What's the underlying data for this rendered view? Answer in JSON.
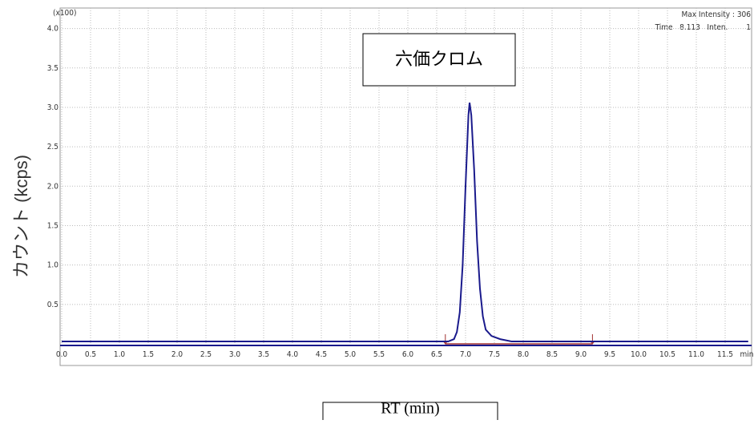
{
  "chart_data": {
    "type": "line",
    "multiplier_label": "(x100)",
    "max_intensity_label": "Max Intensity :  306",
    "cursor_label": "Time   8.113   Inten.        1",
    "annotation": "六価クロム",
    "y_label": "カウント (kcps)",
    "x_label": "RT (min)",
    "x_unit": "min",
    "x": [
      0,
      6.7,
      6.8,
      6.85,
      6.9,
      6.95,
      7.0,
      7.05,
      7.07,
      7.1,
      7.15,
      7.2,
      7.25,
      7.3,
      7.35,
      7.45,
      7.6,
      7.8,
      11.9
    ],
    "series": [
      {
        "color": "#1a1a8c",
        "values": [
          0.03,
          0.03,
          0.06,
          0.15,
          0.4,
          1.0,
          2.0,
          2.9,
          3.06,
          2.9,
          2.2,
          1.3,
          0.7,
          0.35,
          0.18,
          0.1,
          0.06,
          0.03,
          0.03
        ]
      }
    ],
    "integration": [
      6.65,
      9.2
    ],
    "xlim": [
      0,
      11.9
    ],
    "ylim": [
      0,
      4.24
    ],
    "xticks": [
      {
        "value": 0,
        "label": "0.0"
      },
      0.5,
      {
        "value": 1,
        "label": "1.0"
      },
      1.5,
      {
        "value": 2,
        "label": "2.0"
      },
      2.5,
      {
        "value": 3,
        "label": "3.0"
      },
      3.5,
      {
        "value": 4,
        "label": "4.0"
      },
      4.5,
      {
        "value": 5,
        "label": "5.0"
      },
      5.5,
      {
        "value": 6,
        "label": "6.0"
      },
      6.5,
      {
        "value": 7,
        "label": "7.0"
      },
      7.5,
      {
        "value": 8,
        "label": "8.0"
      },
      8.5,
      {
        "value": 9,
        "label": "9.0"
      },
      9.5,
      {
        "value": 10,
        "label": "10.0"
      },
      10.5,
      {
        "value": 11,
        "label": "11.0"
      },
      11.5
    ],
    "yticks": [
      0.5,
      {
        "value": 1,
        "label": "1.0"
      },
      1.5,
      {
        "value": 2,
        "label": "2.0"
      },
      2.5,
      {
        "value": 3,
        "label": "3.0"
      },
      3.5,
      {
        "value": 4,
        "label": "4.0"
      }
    ],
    "grid": true
  }
}
